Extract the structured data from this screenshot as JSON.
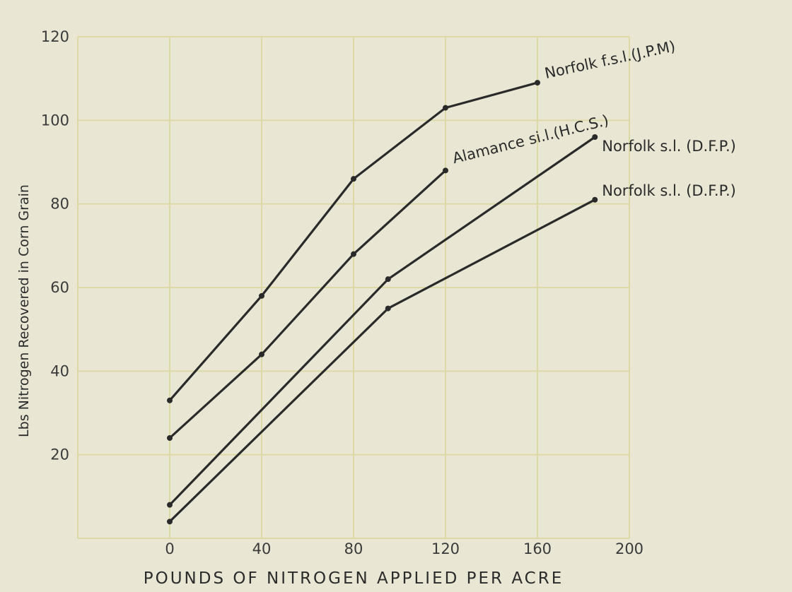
{
  "chart_data": {
    "type": "line",
    "title": "",
    "xlabel": "POUNDS OF NITROGEN APPLIED PER ACRE",
    "ylabel": "Lbs Nitrogen Recovered in Corn Grain",
    "xlim": [
      -40,
      200
    ],
    "ylim": [
      0,
      120
    ],
    "xticks": [
      "0",
      "40",
      "80",
      "120",
      "160",
      "200"
    ],
    "yticks": [
      "20",
      "40",
      "60",
      "80",
      "100",
      "120"
    ],
    "grid": true,
    "series": [
      {
        "name": "Norfolk f.s.l.(J.P.M)",
        "x": [
          0,
          40,
          80,
          120,
          160
        ],
        "y": [
          33,
          58,
          86,
          103,
          109
        ]
      },
      {
        "name": "Alamance si.l.(H.C.S.)",
        "x": [
          0,
          40,
          80,
          120
        ],
        "y": [
          24,
          44,
          68,
          88
        ]
      },
      {
        "name": "Norfolk s.l. (D.F.P.)",
        "x": [
          0,
          95,
          185
        ],
        "y": [
          8,
          62,
          96
        ]
      },
      {
        "name": "Norfolk s.l. (D.F.P.)",
        "x": [
          0,
          95,
          185
        ],
        "y": [
          4,
          55,
          81
        ]
      }
    ]
  }
}
